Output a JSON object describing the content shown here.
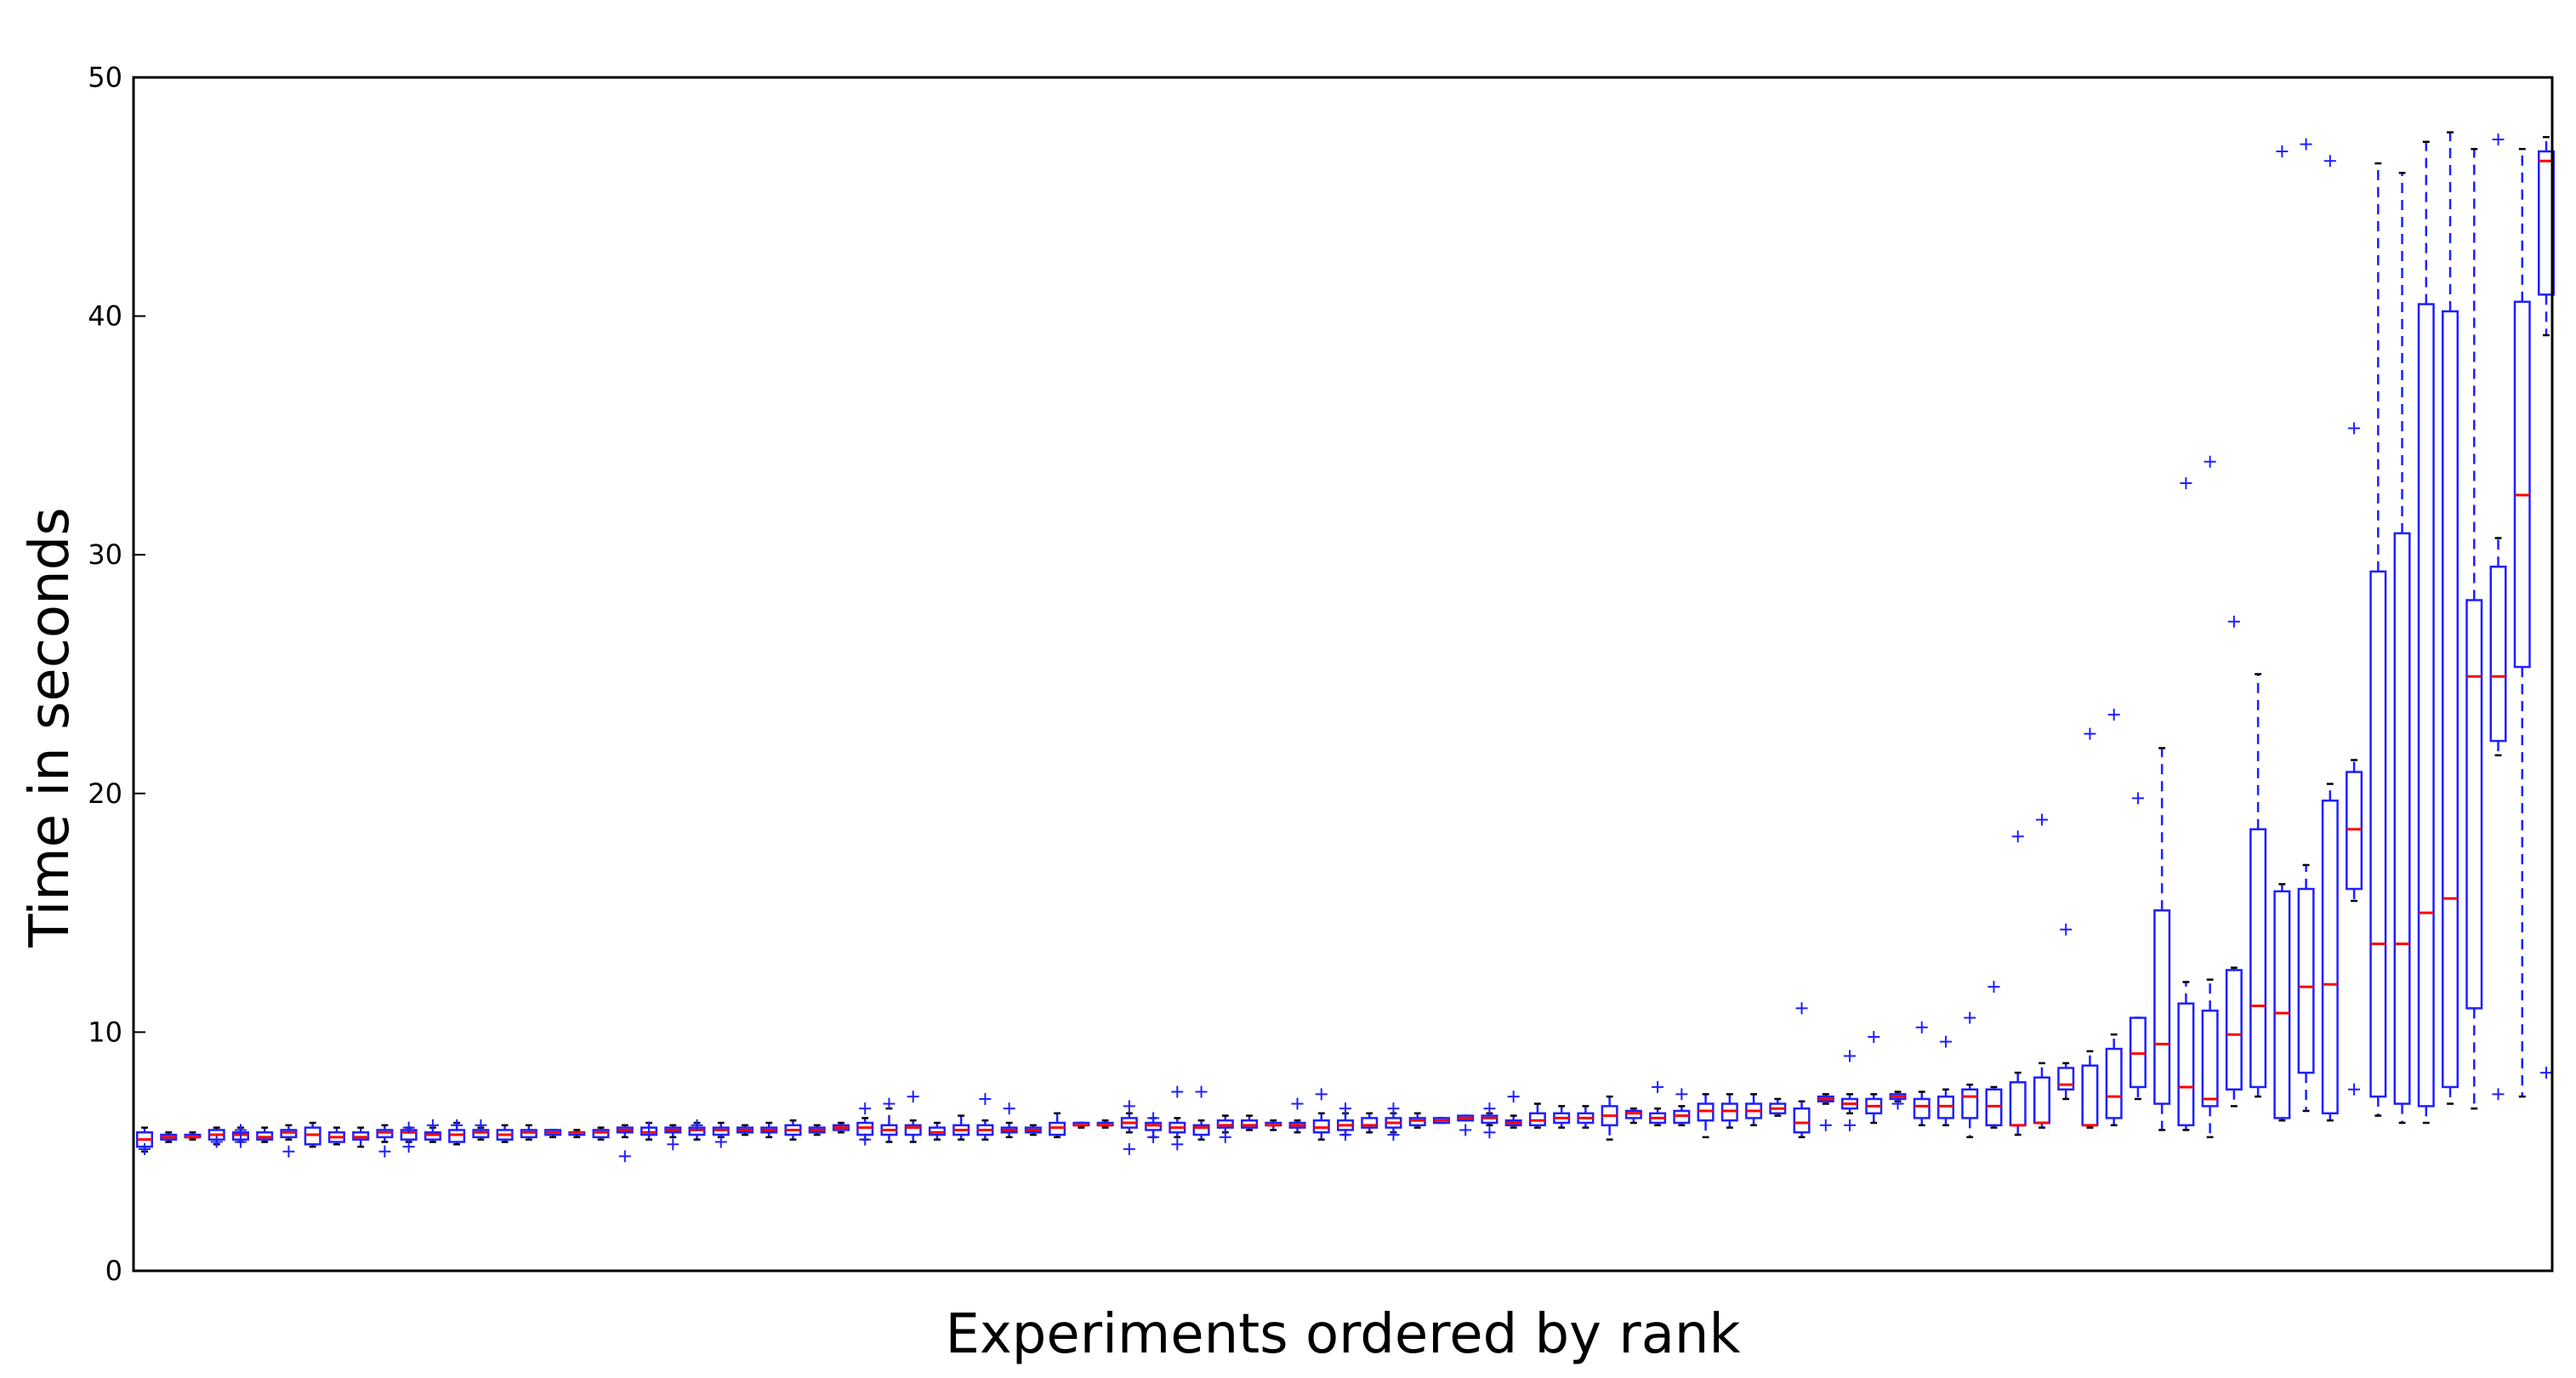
{
  "chart_data": {
    "type": "box",
    "title": "",
    "xlabel": "Experiments ordered by rank",
    "ylabel": "Time in seconds",
    "ylim": [
      0,
      50
    ],
    "yticks": [
      0,
      10,
      20,
      30,
      40,
      50
    ],
    "ytick_labels": [
      "0",
      "10",
      "20",
      "30",
      "40",
      "50"
    ],
    "grid": false,
    "colors": {
      "box": "#1f1fff",
      "median": "#ff0000",
      "flier": "#1f1fff",
      "cap": "#000000",
      "axis": "#000000"
    },
    "boxes": [
      {
        "rank": 1,
        "lo": 5.0,
        "q1": 5.2,
        "med": 5.5,
        "q3": 5.8,
        "hi": 6.0,
        "fliers": [
          5.1
        ]
      },
      {
        "rank": 2,
        "lo": 5.4,
        "q1": 5.5,
        "med": 5.6,
        "q3": 5.7,
        "hi": 5.8,
        "fliers": []
      },
      {
        "rank": 3,
        "lo": 5.5,
        "q1": 5.6,
        "med": 5.6,
        "q3": 5.7,
        "hi": 5.8,
        "fliers": []
      },
      {
        "rank": 4,
        "lo": 5.3,
        "q1": 5.5,
        "med": 5.7,
        "q3": 5.9,
        "hi": 6.0,
        "fliers": [
          5.4
        ]
      },
      {
        "rank": 5,
        "lo": 5.4,
        "q1": 5.5,
        "med": 5.7,
        "q3": 5.8,
        "hi": 6.0,
        "fliers": [
          5.4,
          5.9
        ]
      },
      {
        "rank": 6,
        "lo": 5.4,
        "q1": 5.5,
        "med": 5.6,
        "q3": 5.8,
        "hi": 6.0,
        "fliers": []
      },
      {
        "rank": 7,
        "lo": 5.5,
        "q1": 5.6,
        "med": 5.8,
        "q3": 5.9,
        "hi": 6.1,
        "fliers": [
          5.0
        ]
      },
      {
        "rank": 8,
        "lo": 5.2,
        "q1": 5.3,
        "med": 5.7,
        "q3": 6.0,
        "hi": 6.2,
        "fliers": []
      },
      {
        "rank": 9,
        "lo": 5.3,
        "q1": 5.4,
        "med": 5.6,
        "q3": 5.8,
        "hi": 6.0,
        "fliers": []
      },
      {
        "rank": 10,
        "lo": 5.2,
        "q1": 5.5,
        "med": 5.6,
        "q3": 5.8,
        "hi": 6.0,
        "fliers": []
      },
      {
        "rank": 11,
        "lo": 5.4,
        "q1": 5.6,
        "med": 5.8,
        "q3": 5.9,
        "hi": 6.1,
        "fliers": [
          5.0
        ]
      },
      {
        "rank": 12,
        "lo": 5.4,
        "q1": 5.5,
        "med": 5.8,
        "q3": 5.9,
        "hi": 6.0,
        "fliers": [
          5.2,
          6.0
        ]
      },
      {
        "rank": 13,
        "lo": 5.4,
        "q1": 5.5,
        "med": 5.7,
        "q3": 5.8,
        "hi": 6.0,
        "fliers": [
          6.1
        ]
      },
      {
        "rank": 14,
        "lo": 5.3,
        "q1": 5.4,
        "med": 5.7,
        "q3": 5.9,
        "hi": 6.2,
        "fliers": [
          6.1
        ]
      },
      {
        "rank": 15,
        "lo": 5.5,
        "q1": 5.6,
        "med": 5.8,
        "q3": 5.9,
        "hi": 6.0,
        "fliers": [
          6.1
        ]
      },
      {
        "rank": 16,
        "lo": 5.4,
        "q1": 5.5,
        "med": 5.7,
        "q3": 5.9,
        "hi": 6.1,
        "fliers": []
      },
      {
        "rank": 17,
        "lo": 5.5,
        "q1": 5.6,
        "med": 5.8,
        "q3": 5.9,
        "hi": 6.1,
        "fliers": []
      },
      {
        "rank": 18,
        "lo": 5.6,
        "q1": 5.7,
        "med": 5.8,
        "q3": 5.9,
        "hi": 5.9,
        "fliers": []
      },
      {
        "rank": 19,
        "lo": 5.6,
        "q1": 5.7,
        "med": 5.8,
        "q3": 5.8,
        "hi": 5.9,
        "fliers": []
      },
      {
        "rank": 20,
        "lo": 5.5,
        "q1": 5.6,
        "med": 5.8,
        "q3": 5.9,
        "hi": 6.0,
        "fliers": []
      },
      {
        "rank": 21,
        "lo": 5.6,
        "q1": 5.8,
        "med": 5.9,
        "q3": 6.0,
        "hi": 6.1,
        "fliers": [
          4.8
        ]
      },
      {
        "rank": 22,
        "lo": 5.5,
        "q1": 5.7,
        "med": 5.8,
        "q3": 6.0,
        "hi": 6.2,
        "fliers": [
          6.0
        ]
      },
      {
        "rank": 23,
        "lo": 5.6,
        "q1": 5.8,
        "med": 5.9,
        "q3": 6.0,
        "hi": 6.1,
        "fliers": [
          5.3
        ]
      },
      {
        "rank": 24,
        "lo": 5.5,
        "q1": 5.7,
        "med": 5.9,
        "q3": 6.0,
        "hi": 6.2,
        "fliers": [
          6.1
        ]
      },
      {
        "rank": 25,
        "lo": 5.6,
        "q1": 5.7,
        "med": 5.9,
        "q3": 6.0,
        "hi": 6.2,
        "fliers": [
          5.4
        ]
      },
      {
        "rank": 26,
        "lo": 5.7,
        "q1": 5.8,
        "med": 5.9,
        "q3": 6.0,
        "hi": 6.1,
        "fliers": []
      },
      {
        "rank": 27,
        "lo": 5.6,
        "q1": 5.8,
        "med": 5.9,
        "q3": 6.0,
        "hi": 6.2,
        "fliers": []
      },
      {
        "rank": 28,
        "lo": 5.5,
        "q1": 5.7,
        "med": 5.9,
        "q3": 6.1,
        "hi": 6.3,
        "fliers": []
      },
      {
        "rank": 29,
        "lo": 5.7,
        "q1": 5.8,
        "med": 5.9,
        "q3": 6.0,
        "hi": 6.1,
        "fliers": []
      },
      {
        "rank": 30,
        "lo": 5.8,
        "q1": 5.9,
        "med": 6.0,
        "q3": 6.1,
        "hi": 6.2,
        "fliers": []
      },
      {
        "rank": 31,
        "lo": 5.5,
        "q1": 5.7,
        "med": 6.0,
        "q3": 6.2,
        "hi": 6.4,
        "fliers": [
          5.5,
          6.8
        ]
      },
      {
        "rank": 32,
        "lo": 5.4,
        "q1": 5.7,
        "med": 5.9,
        "q3": 6.1,
        "hi": 6.8,
        "fliers": [
          7.0
        ]
      },
      {
        "rank": 33,
        "lo": 5.4,
        "q1": 5.7,
        "med": 6.0,
        "q3": 6.1,
        "hi": 6.3,
        "fliers": [
          7.3
        ]
      },
      {
        "rank": 34,
        "lo": 5.5,
        "q1": 5.7,
        "med": 5.8,
        "q3": 6.0,
        "hi": 6.2,
        "fliers": []
      },
      {
        "rank": 35,
        "lo": 5.5,
        "q1": 5.7,
        "med": 5.9,
        "q3": 6.1,
        "hi": 6.5,
        "fliers": []
      },
      {
        "rank": 36,
        "lo": 5.5,
        "q1": 5.7,
        "med": 5.9,
        "q3": 6.1,
        "hi": 6.3,
        "fliers": [
          7.2
        ]
      },
      {
        "rank": 37,
        "lo": 5.6,
        "q1": 5.8,
        "med": 5.9,
        "q3": 6.0,
        "hi": 6.2,
        "fliers": [
          6.8
        ]
      },
      {
        "rank": 38,
        "lo": 5.7,
        "q1": 5.8,
        "med": 5.9,
        "q3": 6.0,
        "hi": 6.1,
        "fliers": []
      },
      {
        "rank": 39,
        "lo": 5.6,
        "q1": 5.7,
        "med": 6.0,
        "q3": 6.2,
        "hi": 6.6,
        "fliers": []
      },
      {
        "rank": 40,
        "lo": 6.0,
        "q1": 6.1,
        "med": 6.1,
        "q3": 6.2,
        "hi": 6.2,
        "fliers": []
      },
      {
        "rank": 41,
        "lo": 6.0,
        "q1": 6.1,
        "med": 6.1,
        "q3": 6.2,
        "hi": 6.3,
        "fliers": []
      },
      {
        "rank": 42,
        "lo": 5.8,
        "q1": 6.0,
        "med": 6.2,
        "q3": 6.4,
        "hi": 6.6,
        "fliers": [
          5.1,
          6.9
        ]
      },
      {
        "rank": 43,
        "lo": 5.6,
        "q1": 5.9,
        "med": 6.1,
        "q3": 6.2,
        "hi": 6.4,
        "fliers": [
          5.6,
          6.4
        ]
      },
      {
        "rank": 44,
        "lo": 5.6,
        "q1": 5.8,
        "med": 6.0,
        "q3": 6.2,
        "hi": 6.4,
        "fliers": [
          5.3,
          7.5
        ]
      },
      {
        "rank": 45,
        "lo": 5.5,
        "q1": 5.7,
        "med": 6.0,
        "q3": 6.1,
        "hi": 6.3,
        "fliers": [
          7.5
        ]
      },
      {
        "rank": 46,
        "lo": 5.8,
        "q1": 6.0,
        "med": 6.1,
        "q3": 6.3,
        "hi": 6.5,
        "fliers": [
          5.6
        ]
      },
      {
        "rank": 47,
        "lo": 5.9,
        "q1": 6.0,
        "med": 6.1,
        "q3": 6.3,
        "hi": 6.5,
        "fliers": []
      },
      {
        "rank": 48,
        "lo": 5.9,
        "q1": 6.1,
        "med": 6.1,
        "q3": 6.2,
        "hi": 6.3,
        "fliers": []
      },
      {
        "rank": 49,
        "lo": 5.8,
        "q1": 6.0,
        "med": 6.1,
        "q3": 6.2,
        "hi": 6.3,
        "fliers": [
          7.0
        ]
      },
      {
        "rank": 50,
        "lo": 5.5,
        "q1": 5.8,
        "med": 6.0,
        "q3": 6.3,
        "hi": 6.6,
        "fliers": [
          7.4
        ]
      },
      {
        "rank": 51,
        "lo": 5.7,
        "q1": 5.9,
        "med": 6.1,
        "q3": 6.3,
        "hi": 6.6,
        "fliers": [
          5.7,
          6.8
        ]
      },
      {
        "rank": 52,
        "lo": 5.8,
        "q1": 6.0,
        "med": 6.1,
        "q3": 6.4,
        "hi": 6.6,
        "fliers": []
      },
      {
        "rank": 53,
        "lo": 5.8,
        "q1": 6.0,
        "med": 6.2,
        "q3": 6.4,
        "hi": 6.6,
        "fliers": [
          5.7,
          6.8
        ]
      },
      {
        "rank": 54,
        "lo": 6.0,
        "q1": 6.1,
        "med": 6.3,
        "q3": 6.4,
        "hi": 6.6,
        "fliers": []
      },
      {
        "rank": 55,
        "lo": 6.2,
        "q1": 6.2,
        "med": 6.3,
        "q3": 6.4,
        "hi": 6.4,
        "fliers": []
      },
      {
        "rank": 56,
        "lo": 6.3,
        "q1": 6.3,
        "med": 6.4,
        "q3": 6.5,
        "hi": 6.5,
        "fliers": [
          5.9
        ]
      },
      {
        "rank": 57,
        "lo": 6.1,
        "q1": 6.2,
        "med": 6.4,
        "q3": 6.5,
        "hi": 6.6,
        "fliers": [
          5.8,
          6.8
        ]
      },
      {
        "rank": 58,
        "lo": 6.0,
        "q1": 6.1,
        "med": 6.2,
        "q3": 6.3,
        "hi": 6.5,
        "fliers": [
          7.3
        ]
      },
      {
        "rank": 59,
        "lo": 6.0,
        "q1": 6.1,
        "med": 6.3,
        "q3": 6.6,
        "hi": 7.0,
        "fliers": []
      },
      {
        "rank": 60,
        "lo": 6.0,
        "q1": 6.2,
        "med": 6.4,
        "q3": 6.6,
        "hi": 6.9,
        "fliers": []
      },
      {
        "rank": 61,
        "lo": 6.0,
        "q1": 6.2,
        "med": 6.4,
        "q3": 6.6,
        "hi": 6.9,
        "fliers": []
      },
      {
        "rank": 62,
        "lo": 5.5,
        "q1": 6.1,
        "med": 6.5,
        "q3": 6.9,
        "hi": 7.3,
        "fliers": []
      },
      {
        "rank": 63,
        "lo": 6.2,
        "q1": 6.4,
        "med": 6.6,
        "q3": 6.7,
        "hi": 6.8,
        "fliers": []
      },
      {
        "rank": 64,
        "lo": 6.1,
        "q1": 6.2,
        "med": 6.4,
        "q3": 6.6,
        "hi": 6.8,
        "fliers": [
          7.7
        ]
      },
      {
        "rank": 65,
        "lo": 6.1,
        "q1": 6.2,
        "med": 6.5,
        "q3": 6.7,
        "hi": 6.9,
        "fliers": [
          7.4
        ]
      },
      {
        "rank": 66,
        "lo": 5.6,
        "q1": 6.3,
        "med": 6.7,
        "q3": 7.0,
        "hi": 7.4,
        "fliers": []
      },
      {
        "rank": 67,
        "lo": 6.0,
        "q1": 6.3,
        "med": 6.7,
        "q3": 7.0,
        "hi": 7.4,
        "fliers": []
      },
      {
        "rank": 68,
        "lo": 6.1,
        "q1": 6.4,
        "med": 6.7,
        "q3": 7.0,
        "hi": 7.4,
        "fliers": []
      },
      {
        "rank": 69,
        "lo": 6.5,
        "q1": 6.6,
        "med": 6.8,
        "q3": 7.0,
        "hi": 7.2,
        "fliers": []
      },
      {
        "rank": 70,
        "lo": 5.6,
        "q1": 5.8,
        "med": 6.2,
        "q3": 6.8,
        "hi": 7.1,
        "fliers": [
          11.0
        ]
      },
      {
        "rank": 71,
        "lo": 7.0,
        "q1": 7.1,
        "med": 7.2,
        "q3": 7.3,
        "hi": 7.4,
        "fliers": [
          6.1
        ]
      },
      {
        "rank": 72,
        "lo": 6.6,
        "q1": 6.8,
        "med": 7.0,
        "q3": 7.2,
        "hi": 7.4,
        "fliers": [
          6.1,
          9.0
        ]
      },
      {
        "rank": 73,
        "lo": 6.2,
        "q1": 6.6,
        "med": 6.9,
        "q3": 7.2,
        "hi": 7.4,
        "fliers": [
          9.8
        ]
      },
      {
        "rank": 74,
        "lo": 7.1,
        "q1": 7.2,
        "med": 7.3,
        "q3": 7.4,
        "hi": 7.5,
        "fliers": [
          7.0
        ]
      },
      {
        "rank": 75,
        "lo": 6.1,
        "q1": 6.4,
        "med": 6.9,
        "q3": 7.2,
        "hi": 7.5,
        "fliers": [
          10.2
        ]
      },
      {
        "rank": 76,
        "lo": 6.1,
        "q1": 6.4,
        "med": 6.9,
        "q3": 7.3,
        "hi": 7.6,
        "fliers": [
          9.6
        ]
      },
      {
        "rank": 77,
        "lo": 5.6,
        "q1": 6.4,
        "med": 7.3,
        "q3": 7.6,
        "hi": 7.8,
        "fliers": [
          10.6
        ]
      },
      {
        "rank": 78,
        "lo": 6.0,
        "q1": 6.1,
        "med": 6.9,
        "q3": 7.6,
        "hi": 7.7,
        "fliers": [
          11.9
        ]
      },
      {
        "rank": 79,
        "lo": 5.7,
        "q1": 6.1,
        "med": 6.1,
        "q3": 7.9,
        "hi": 8.3,
        "fliers": [
          18.2
        ]
      },
      {
        "rank": 80,
        "lo": 6.0,
        "q1": 6.2,
        "med": 6.2,
        "q3": 8.1,
        "hi": 8.7,
        "fliers": [
          18.9
        ]
      },
      {
        "rank": 81,
        "lo": 7.2,
        "q1": 7.6,
        "med": 7.8,
        "q3": 8.5,
        "hi": 8.7,
        "fliers": [
          14.3
        ]
      },
      {
        "rank": 82,
        "lo": 6.0,
        "q1": 6.1,
        "med": 6.1,
        "q3": 8.6,
        "hi": 9.2,
        "fliers": [
          22.5
        ]
      },
      {
        "rank": 83,
        "lo": 6.1,
        "q1": 6.4,
        "med": 7.3,
        "q3": 9.3,
        "hi": 9.9,
        "fliers": [
          23.3
        ]
      },
      {
        "rank": 84,
        "lo": 7.2,
        "q1": 7.7,
        "med": 9.1,
        "q3": 10.6,
        "hi": 10.6,
        "fliers": [
          19.8
        ]
      },
      {
        "rank": 85,
        "lo": 5.9,
        "q1": 7.0,
        "med": 9.5,
        "q3": 15.1,
        "hi": 21.9,
        "fliers": []
      },
      {
        "rank": 86,
        "lo": 5.9,
        "q1": 6.1,
        "med": 7.7,
        "q3": 11.2,
        "hi": 12.1,
        "fliers": [
          33.0
        ]
      },
      {
        "rank": 87,
        "lo": 5.6,
        "q1": 6.9,
        "med": 7.2,
        "q3": 10.9,
        "hi": 12.2,
        "fliers": [
          33.9
        ]
      },
      {
        "rank": 88,
        "lo": 6.9,
        "q1": 7.6,
        "med": 9.9,
        "q3": 12.6,
        "hi": 12.7,
        "fliers": [
          27.2
        ]
      },
      {
        "rank": 89,
        "lo": 7.3,
        "q1": 7.7,
        "med": 11.1,
        "q3": 18.5,
        "hi": 25.0,
        "fliers": []
      },
      {
        "rank": 90,
        "lo": 6.3,
        "q1": 6.4,
        "med": 10.8,
        "q3": 15.9,
        "hi": 16.2,
        "fliers": [
          46.9
        ]
      },
      {
        "rank": 91,
        "lo": 6.7,
        "q1": 8.3,
        "med": 11.9,
        "q3": 16.0,
        "hi": 17.0,
        "fliers": [
          47.2
        ]
      },
      {
        "rank": 92,
        "lo": 6.3,
        "q1": 6.6,
        "med": 12.0,
        "q3": 19.7,
        "hi": 20.4,
        "fliers": [
          46.5
        ]
      },
      {
        "rank": 93,
        "lo": 15.5,
        "q1": 16.0,
        "med": 18.5,
        "q3": 20.9,
        "hi": 21.4,
        "fliers": [
          35.3,
          7.6
        ]
      },
      {
        "rank": 94,
        "lo": 6.5,
        "q1": 7.3,
        "med": 13.7,
        "q3": 29.3,
        "hi": 46.4,
        "fliers": []
      },
      {
        "rank": 95,
        "lo": 6.2,
        "q1": 7.0,
        "med": 13.7,
        "q3": 30.9,
        "hi": 46.0,
        "fliers": []
      },
      {
        "rank": 96,
        "lo": 6.2,
        "q1": 6.9,
        "med": 15.0,
        "q3": 40.5,
        "hi": 47.3,
        "fliers": []
      },
      {
        "rank": 97,
        "lo": 7.0,
        "q1": 7.7,
        "med": 15.6,
        "q3": 40.2,
        "hi": 47.7,
        "fliers": []
      },
      {
        "rank": 98,
        "lo": 6.8,
        "q1": 11.0,
        "med": 24.9,
        "q3": 28.1,
        "hi": 47.0,
        "fliers": []
      },
      {
        "rank": 99,
        "lo": 21.6,
        "q1": 22.2,
        "med": 24.9,
        "q3": 29.5,
        "hi": 30.7,
        "fliers": [
          47.4,
          7.4
        ]
      },
      {
        "rank": 100,
        "lo": 7.3,
        "q1": 25.3,
        "med": 32.5,
        "q3": 40.6,
        "hi": 47.0,
        "fliers": []
      },
      {
        "rank": 101,
        "lo": 39.2,
        "q1": 40.9,
        "med": 46.5,
        "q3": 46.9,
        "hi": 47.5,
        "fliers": [
          8.3
        ]
      }
    ]
  }
}
